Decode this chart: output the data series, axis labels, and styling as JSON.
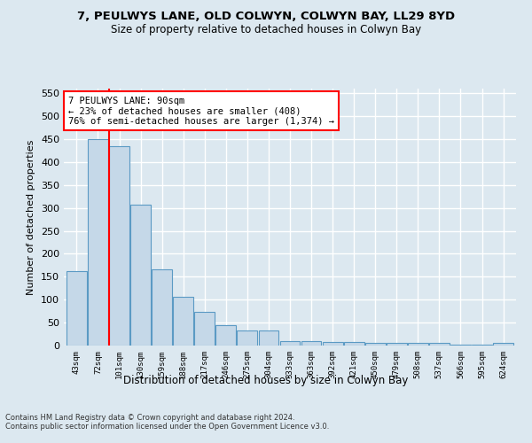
{
  "title1": "7, PEULWYS LANE, OLD COLWYN, COLWYN BAY, LL29 8YD",
  "title2": "Size of property relative to detached houses in Colwyn Bay",
  "xlabel": "Distribution of detached houses by size in Colwyn Bay",
  "ylabel": "Number of detached properties",
  "categories": [
    "43sqm",
    "72sqm",
    "101sqm",
    "130sqm",
    "159sqm",
    "188sqm",
    "217sqm",
    "246sqm",
    "275sqm",
    "304sqm",
    "333sqm",
    "363sqm",
    "392sqm",
    "421sqm",
    "450sqm",
    "479sqm",
    "508sqm",
    "537sqm",
    "566sqm",
    "595sqm",
    "624sqm"
  ],
  "values": [
    163,
    450,
    435,
    307,
    167,
    106,
    74,
    44,
    32,
    32,
    10,
    10,
    8,
    8,
    5,
    5,
    5,
    5,
    2,
    2,
    5
  ],
  "bar_color": "#c5d8e8",
  "bar_edge_color": "#5b9ac4",
  "redline_x": 2,
  "annotation_title": "7 PEULWYS LANE: 90sqm",
  "annotation_line1": "← 23% of detached houses are smaller (408)",
  "annotation_line2": "76% of semi-detached houses are larger (1,374) →",
  "footer1": "Contains HM Land Registry data © Crown copyright and database right 2024.",
  "footer2": "Contains public sector information licensed under the Open Government Licence v3.0.",
  "ylim": [
    0,
    560
  ],
  "yticks": [
    0,
    50,
    100,
    150,
    200,
    250,
    300,
    350,
    400,
    450,
    500,
    550
  ],
  "bg_color": "#dce8f0",
  "grid_color": "#ffffff",
  "title_fontsize": 9.5,
  "subtitle_fontsize": 8.5
}
